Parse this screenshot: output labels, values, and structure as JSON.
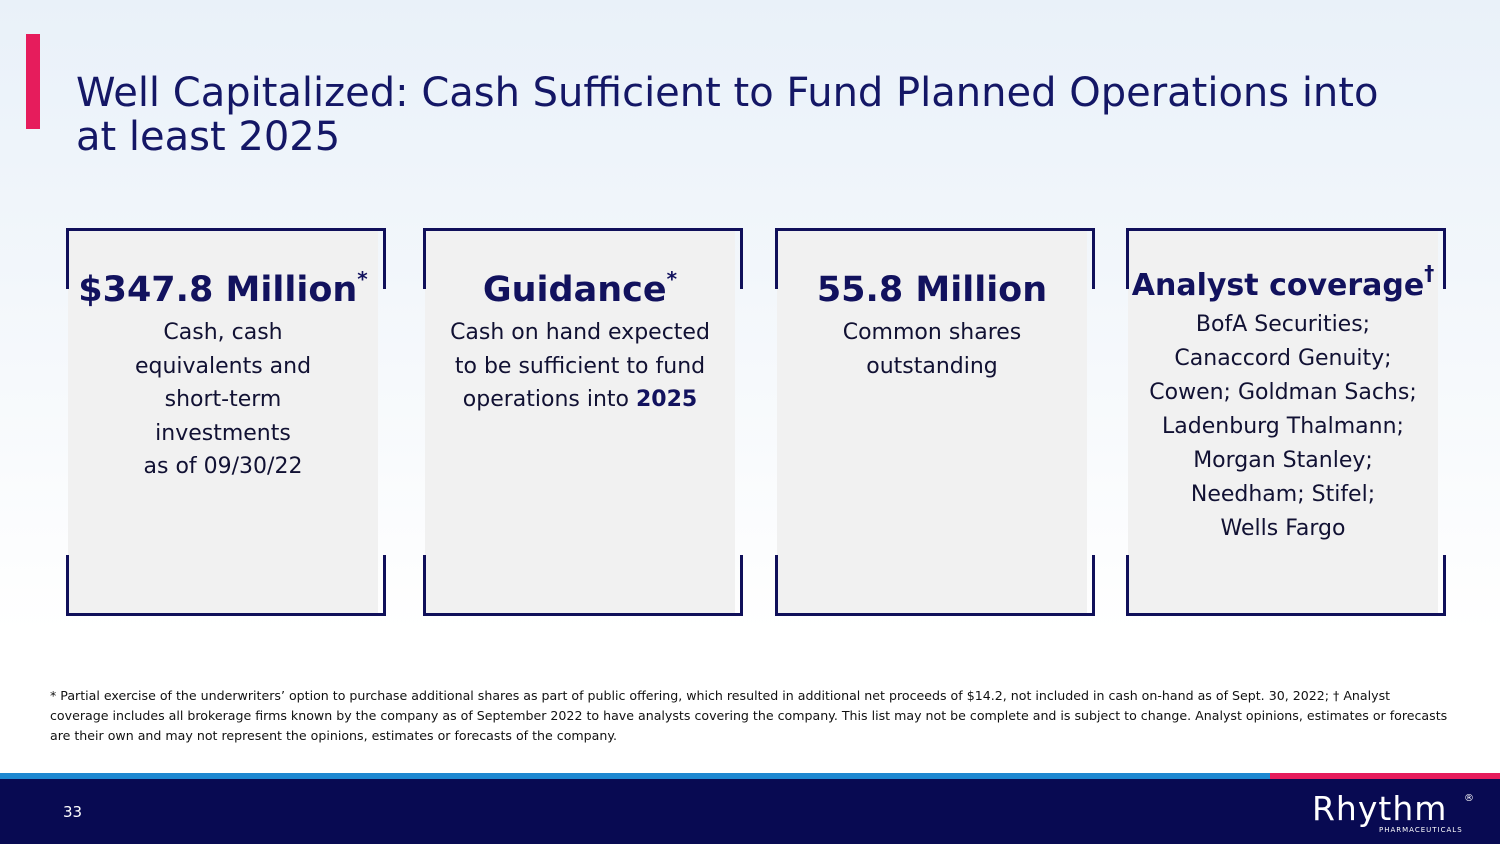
{
  "slide": {
    "title": "Well Capitalized: Cash Sufficient to Fund Planned Operations into at least 2025",
    "page_number": "33"
  },
  "cards": [
    {
      "headline": "$347.8 Million",
      "marker": "*",
      "lines": [
        "Cash, cash",
        "equivalents and",
        "short-term",
        "investments",
        "as of 09/30/22"
      ]
    },
    {
      "headline": "Guidance",
      "marker": "*",
      "lines": [
        "Cash on hand expected",
        "to be sufficient to fund"
      ],
      "last_line_prefix": "operations into ",
      "last_line_bold": "2025"
    },
    {
      "headline": "55.8 Million",
      "lines": [
        "Common shares",
        "outstanding"
      ]
    },
    {
      "headline": "Analyst coverage",
      "marker": "†",
      "lines": [
        "BofA Securities;",
        "Canaccord Genuity;",
        "Cowen; Goldman Sachs;",
        "Ladenburg Thalmann;",
        "Morgan Stanley;",
        "Needham; Stifel;",
        "Wells Fargo"
      ]
    }
  ],
  "footnote": "* Partial exercise of the underwriters’ option to purchase additional shares as part of public offering, which resulted in additional net proceeds of $14.2, not included in cash on-hand as of Sept. 30, 2022; † Analyst coverage includes all brokerage firms known by the company as of September 2022 to have analysts covering the company. This list may not be complete and is subject to change. Analyst opinions, estimates or forecasts are their own and may not represent the opinions, estimates or forecasts of the company.",
  "logo": {
    "wordmark": "Rhythm",
    "registered": "®",
    "subtitle": "PHARMACEUTICALS"
  },
  "colors": {
    "navy": "#080a52",
    "accent_pink": "#e61c5c",
    "accent_blue": "#1e88d1",
    "card_fill": "#f1f1f1"
  }
}
